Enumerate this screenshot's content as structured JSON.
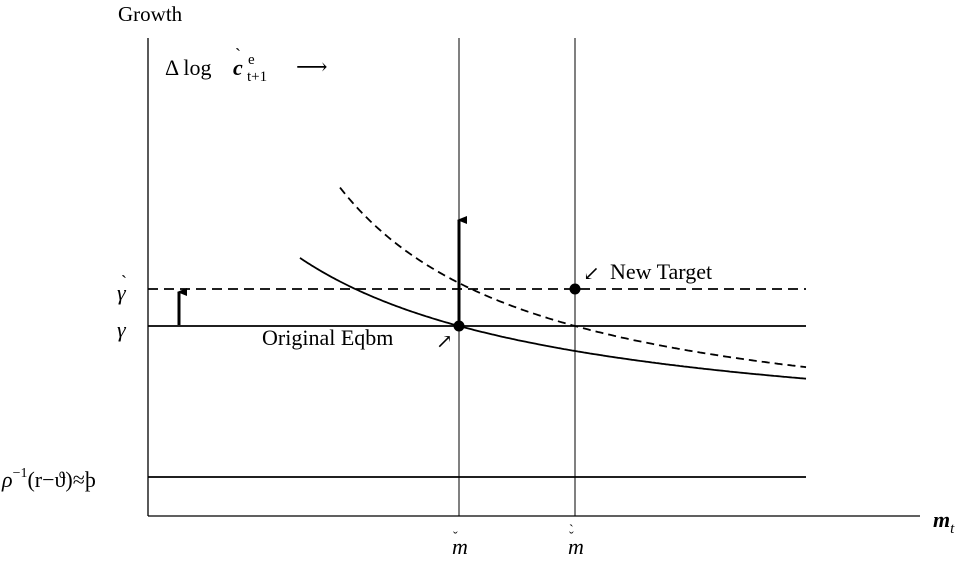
{
  "chart_data": {
    "type": "line",
    "ylabel": "Growth",
    "xlabel": "m_t",
    "ylabel_text": "Growth",
    "xlabel_main": "m",
    "xlabel_sub": "t",
    "curves": [
      {
        "name": "Δ log ċ_{t+1}^e (original)",
        "style": "solid",
        "role": "consumption-growth-original"
      },
      {
        "name": "Δ log ċ_{t+1}^e (shifted up)",
        "style": "dashed",
        "role": "consumption-growth-new"
      }
    ],
    "curve_label": {
      "prefix": "Δ log",
      "symbol": "c",
      "superscript": "e",
      "subscript": "t+1",
      "arrow": "⟶"
    },
    "horizontal_lines": [
      {
        "label_main": "γ",
        "accent": "",
        "style": "solid",
        "role": "gamma"
      },
      {
        "label_main": "γ",
        "accent": "`",
        "style": "dashed",
        "role": "gamma-new"
      },
      {
        "label_main": "ρ",
        "superscript": "−1",
        "label_rest": "(r−ϑ)≈þ",
        "style": "solid",
        "role": "patience"
      }
    ],
    "vertical_lines": [
      {
        "label_main": "m",
        "accent": "ˇ",
        "role": "original-target"
      },
      {
        "label_main": "m",
        "accent": "ˇ`",
        "role": "new-target"
      }
    ],
    "points": [
      {
        "label": "Original Eqbm",
        "arrow": "↗"
      },
      {
        "label": "New Target",
        "arrow": "↙"
      }
    ],
    "arrows": [
      {
        "role": "gamma-shift",
        "direction": "up"
      },
      {
        "role": "curve-shift",
        "direction": "up"
      }
    ]
  }
}
